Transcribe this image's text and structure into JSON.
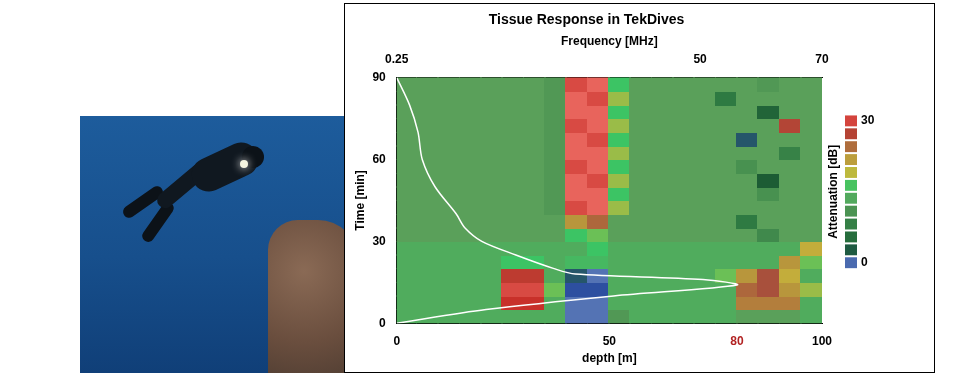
{
  "chart_data": {
    "type": "heatmap",
    "title": "Tissue Response in TekDives",
    "x_label": "depth [m]",
    "x2_label": "Frequency [MHz]",
    "y_label": "Time [min]",
    "xlim": [
      0,
      100
    ],
    "xticks": [
      0,
      50,
      80,
      100
    ],
    "x2lim": [
      0.25,
      70
    ],
    "x2ticks": [
      0.25,
      50,
      70
    ],
    "ylim": [
      0,
      90
    ],
    "yticks": [
      0,
      30,
      60,
      90
    ],
    "grid": false,
    "heatmap": {
      "x_edges": [
        0.25,
        3.5,
        7,
        10.5,
        14,
        17.5,
        21,
        24.5,
        28,
        31.5,
        35,
        38.5,
        42,
        45.5,
        49,
        52.5,
        56,
        59.5,
        63,
        66.5,
        70
      ],
      "y_edges": [
        0,
        5,
        10,
        15,
        20,
        25,
        30,
        35,
        40,
        45,
        50,
        55,
        60,
        65,
        70,
        75,
        80,
        85,
        90
      ],
      "cells": [
        [
          14,
          14,
          14,
          14,
          14,
          14,
          14,
          14,
          1,
          1,
          12,
          14,
          14,
          14,
          14,
          14,
          13,
          13,
          13,
          14
        ],
        [
          14,
          14,
          14,
          14,
          14,
          28,
          28,
          14,
          1,
          1,
          14,
          14,
          14,
          14,
          14,
          14,
          23,
          23,
          23,
          14
        ],
        [
          14,
          14,
          14,
          14,
          14,
          29,
          29,
          17,
          2,
          2,
          14,
          14,
          14,
          14,
          14,
          14,
          24,
          25,
          22,
          18
        ],
        [
          14,
          14,
          14,
          14,
          14,
          27,
          27,
          14,
          3,
          1,
          14,
          14,
          14,
          14,
          14,
          17,
          22,
          25,
          20,
          14
        ],
        [
          14,
          14,
          14,
          14,
          14,
          16,
          16,
          14,
          15,
          15,
          14,
          14,
          14,
          14,
          14,
          14,
          14,
          14,
          22,
          17
        ],
        [
          14,
          14,
          14,
          14,
          14,
          14,
          14,
          14,
          14,
          16,
          14,
          14,
          14,
          14,
          14,
          14,
          14,
          14,
          14,
          20
        ],
        [
          13,
          13,
          13,
          13,
          13,
          13,
          13,
          13,
          16,
          17,
          13,
          13,
          13,
          13,
          13,
          13,
          13,
          10,
          13,
          13
        ],
        [
          13,
          13,
          13,
          13,
          13,
          13,
          13,
          13,
          22,
          24,
          13,
          13,
          13,
          13,
          13,
          13,
          8,
          13,
          13,
          13
        ],
        [
          13,
          13,
          13,
          13,
          13,
          13,
          13,
          12,
          29,
          30,
          18,
          13,
          13,
          13,
          13,
          13,
          13,
          13,
          13,
          13
        ],
        [
          13,
          13,
          13,
          13,
          13,
          13,
          13,
          12,
          30,
          30,
          16,
          13,
          13,
          13,
          13,
          13,
          13,
          11,
          13,
          13
        ],
        [
          13,
          13,
          13,
          13,
          13,
          13,
          13,
          12,
          30,
          29,
          18,
          13,
          13,
          13,
          13,
          13,
          13,
          4,
          13,
          13
        ],
        [
          13,
          13,
          13,
          13,
          13,
          13,
          13,
          12,
          29,
          30,
          16,
          13,
          13,
          13,
          13,
          13,
          11,
          13,
          13,
          13
        ],
        [
          13,
          13,
          13,
          13,
          13,
          13,
          13,
          12,
          30,
          30,
          18,
          13,
          13,
          13,
          13,
          13,
          13,
          13,
          9,
          13
        ],
        [
          13,
          13,
          13,
          13,
          13,
          13,
          13,
          12,
          30,
          29,
          16,
          13,
          13,
          13,
          13,
          13,
          3,
          13,
          13,
          13
        ],
        [
          13,
          13,
          13,
          13,
          13,
          13,
          13,
          12,
          29,
          30,
          18,
          13,
          13,
          13,
          13,
          13,
          13,
          13,
          26,
          13
        ],
        [
          13,
          13,
          13,
          13,
          13,
          13,
          13,
          12,
          30,
          30,
          16,
          13,
          13,
          13,
          13,
          13,
          13,
          5,
          13,
          13
        ],
        [
          13,
          13,
          13,
          13,
          13,
          13,
          13,
          12,
          30,
          29,
          18,
          13,
          13,
          13,
          13,
          8,
          13,
          13,
          13,
          13
        ],
        [
          13,
          13,
          13,
          13,
          13,
          13,
          13,
          12,
          29,
          30,
          16,
          13,
          13,
          13,
          13,
          13,
          13,
          12,
          13,
          13
        ]
      ]
    },
    "colorbar": {
      "label": "Attenuation [dB]",
      "range": [
        0,
        30
      ],
      "ticks": [
        0,
        30
      ]
    },
    "line": {
      "color": "#ffffff",
      "x": [
        0,
        21,
        51,
        80,
        72,
        42,
        37,
        28,
        20,
        16,
        14,
        9,
        6,
        5,
        3,
        0
      ],
      "y": [
        0,
        5,
        10,
        14,
        16,
        18,
        20,
        25,
        30,
        35,
        40,
        50,
        60,
        70,
        80,
        90
      ]
    }
  }
}
